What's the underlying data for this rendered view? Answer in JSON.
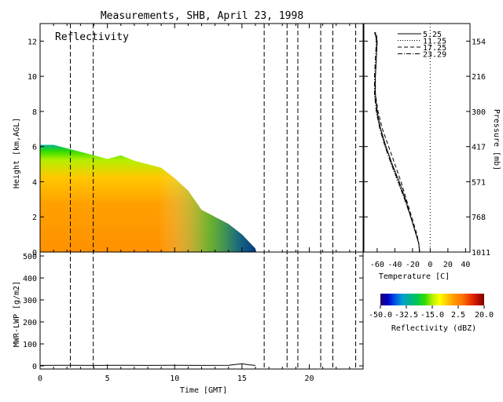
{
  "chart_data": [
    {
      "type": "heatmap",
      "title": "Measurements, SHB, April 23, 1998",
      "panel_label": "Reflectivity",
      "xlabel": "Time [GMT]",
      "ylabel": "Height [km,AGL]",
      "xlim": [
        0,
        24
      ],
      "ylim": [
        0,
        13
      ],
      "x_ticks": [
        "0",
        "5",
        "10",
        "15",
        "20"
      ],
      "y_ticks": [
        "0",
        "2",
        "4",
        "6",
        "8",
        "10",
        "12"
      ],
      "vertical_dashed_lines": [
        2.25,
        3.95,
        16.65,
        18.35,
        19.15,
        20.85,
        21.75,
        23.45
      ],
      "echo_top_profile": {
        "x": [
          0,
          1,
          2,
          3,
          4,
          5,
          6,
          7,
          8,
          9,
          10,
          11,
          12,
          13,
          14,
          15,
          15.5,
          16
        ],
        "top_km": [
          6.1,
          6.1,
          5.9,
          5.7,
          5.5,
          5.3,
          5.5,
          5.2,
          5.0,
          4.8,
          4.2,
          3.5,
          2.4,
          2.0,
          1.6,
          1.0,
          0.6,
          0.2
        ]
      }
    },
    {
      "type": "line",
      "xlabel": "Temperature [C]",
      "ylabel": "Pressure [mb]",
      "xlim": [
        -75,
        45
      ],
      "x_ticks": [
        "-60",
        "-40",
        "-20",
        "0",
        "20",
        "40"
      ],
      "y_ticks": [
        "154",
        "216",
        "300",
        "417",
        "571",
        "768",
        "1011"
      ],
      "series": [
        {
          "name": "5.25",
          "style": "solid",
          "height_km": [
            0,
            0.5,
            1,
            2,
            3,
            4,
            5,
            6,
            7,
            8,
            9,
            10,
            11,
            12,
            12.5
          ],
          "temp_c": [
            -12,
            -13,
            -16,
            -22,
            -28,
            -35,
            -43,
            -50,
            -56,
            -60,
            -62,
            -62,
            -61,
            -60,
            -63
          ]
        },
        {
          "name": "11.25",
          "style": "dotted",
          "height_km": [
            0,
            0.5,
            1,
            2,
            3,
            4,
            5,
            6,
            7,
            8,
            9,
            10,
            11,
            12,
            12.5
          ],
          "temp_c": [
            -12,
            -13,
            -16,
            -22,
            -29,
            -37,
            -44,
            -51,
            -57,
            -61,
            -63,
            -62,
            -61,
            -61,
            -62
          ]
        },
        {
          "name": "17.25",
          "style": "dashed",
          "height_km": [
            0,
            0.5,
            1,
            2,
            3,
            4,
            5,
            6,
            7,
            8,
            9,
            10,
            11,
            12,
            12.5
          ],
          "temp_c": [
            -12,
            -13,
            -15,
            -21,
            -27,
            -33,
            -40,
            -47,
            -54,
            -59,
            -62,
            -62,
            -61,
            -60,
            -61
          ]
        },
        {
          "name": "23.29",
          "style": "dashdot",
          "height_km": [
            0,
            0.5,
            1,
            2,
            3,
            4,
            5,
            6,
            7,
            8,
            9,
            10,
            11,
            12,
            12.5
          ],
          "temp_c": [
            -12,
            -13,
            -16,
            -22,
            -29,
            -36,
            -44,
            -51,
            -57,
            -61,
            -63,
            -63,
            -62,
            -61,
            -62
          ]
        }
      ]
    },
    {
      "type": "line",
      "xlabel": "Time [GMT]",
      "ylabel": "MWR-LWP [g/m2]",
      "xlim": [
        0,
        24
      ],
      "ylim": [
        0,
        500
      ],
      "x_ticks": [
        "0",
        "5",
        "10",
        "15",
        "20"
      ],
      "y_ticks": [
        "0",
        "100",
        "200",
        "300",
        "400",
        "500"
      ],
      "series": [
        {
          "name": "",
          "x": [
            0,
            2,
            4,
            6,
            8,
            10,
            12,
            14,
            14.5,
            15,
            15.5,
            16
          ],
          "values": [
            2,
            3,
            2,
            3,
            2,
            3,
            2,
            3,
            6,
            10,
            5,
            2
          ]
        }
      ]
    },
    {
      "type": "colorbar",
      "label": "Reflectivity (dBZ)",
      "range": [
        -50,
        20
      ],
      "tick_labels": [
        "-50.0",
        "-32.5",
        "-15.0",
        "2.5",
        "20.0"
      ],
      "colors": [
        "#1d0068",
        "#0000c8",
        "#0055e6",
        "#00a0d2",
        "#00b48c",
        "#00c850",
        "#32dc00",
        "#b4f000",
        "#ffff00",
        "#ffc800",
        "#ff9600",
        "#ff7800",
        "#f03c00",
        "#c81400",
        "#780000"
      ]
    }
  ]
}
